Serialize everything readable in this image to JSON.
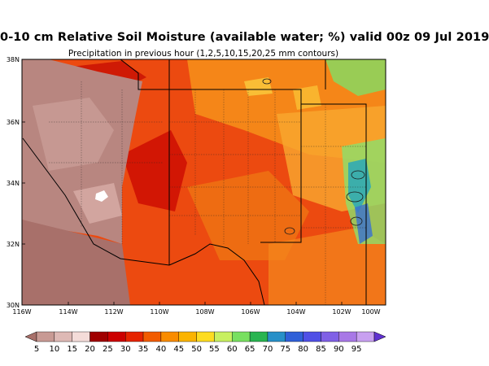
{
  "title": "0-10 cm Relative Soil Moisture (available water; %) valid 00z 09 Jul 2019",
  "subtitle": "Precipitation in previous hour (1,2,5,10,15,20,25 mm contours)",
  "lat_labels": [
    "38N",
    "36N",
    "34N",
    "32N",
    "30N"
  ],
  "lon_labels": [
    "116W",
    "114W",
    "112W",
    "110W",
    "108W",
    "106W",
    "104W",
    "102W",
    "100W"
  ],
  "colorbar": {
    "labels": [
      "5",
      "10",
      "15",
      "20",
      "25",
      "30",
      "35",
      "40",
      "45",
      "50",
      "55",
      "60",
      "65",
      "70",
      "75",
      "80",
      "85",
      "90",
      "95"
    ],
    "colors": [
      "#c89a94",
      "#deb9b5",
      "#f4dcd9",
      "#a00000",
      "#cc0000",
      "#e62400",
      "#f25c00",
      "#f98c00",
      "#fbb400",
      "#fddc20",
      "#c8f060",
      "#78e060",
      "#28b450",
      "#2890c8",
      "#3060d8",
      "#5050e6",
      "#8060e6",
      "#a878e6",
      "#c8a0f0"
    ],
    "under_color": "#a8706a",
    "over_color": "#6030d0"
  }
}
